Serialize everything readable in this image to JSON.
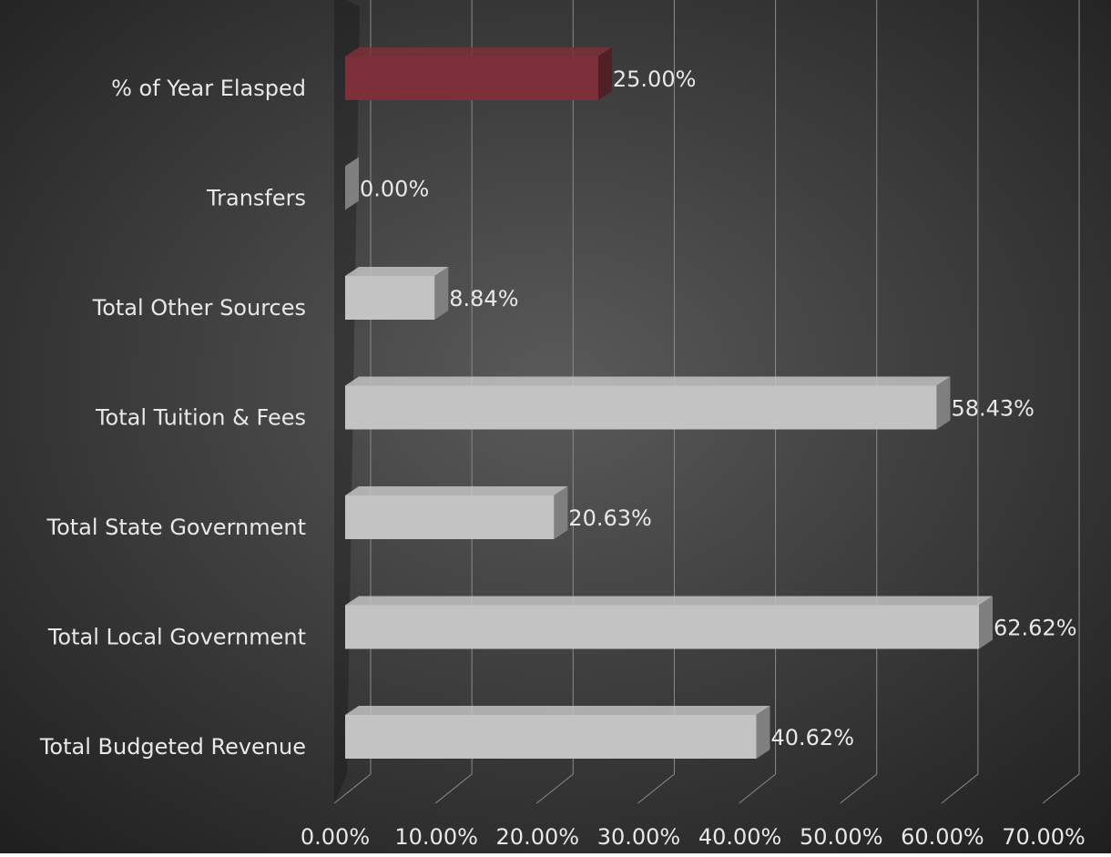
{
  "chart_data": {
    "type": "bar3d_horizontal",
    "categories": [
      "% of Year Elasped",
      "Transfers",
      "Total Other Sources",
      "Total Tuition & Fees",
      "Total State Government",
      "Total Local Government",
      "Total Budgeted Revenue"
    ],
    "values": [
      25,
      0,
      8.84,
      58.43,
      20.63,
      62.62,
      40.62
    ],
    "value_labels": [
      "25.00%",
      "0.00%",
      "8.84%",
      "58.43%",
      "20.63%",
      "62.62%",
      "40.62%"
    ],
    "colors": [
      "#7d3039",
      "#c3c3c3",
      "#c3c3c3",
      "#c3c3c3",
      "#c3c3c3",
      "#c3c3c3",
      "#c3c3c3"
    ],
    "xlim": [
      0,
      70
    ],
    "xticks": [
      {
        "value": 0,
        "label": "0.00%"
      },
      {
        "value": 10,
        "label": "10.00%"
      },
      {
        "value": 20,
        "label": "20.00%"
      },
      {
        "value": 30,
        "label": "30.00%"
      },
      {
        "value": 40,
        "label": "40.00%"
      },
      {
        "value": 50,
        "label": "50.00%"
      },
      {
        "value": 60,
        "label": "60.00%"
      },
      {
        "value": 70,
        "label": "70.00%"
      }
    ],
    "grid": true
  }
}
